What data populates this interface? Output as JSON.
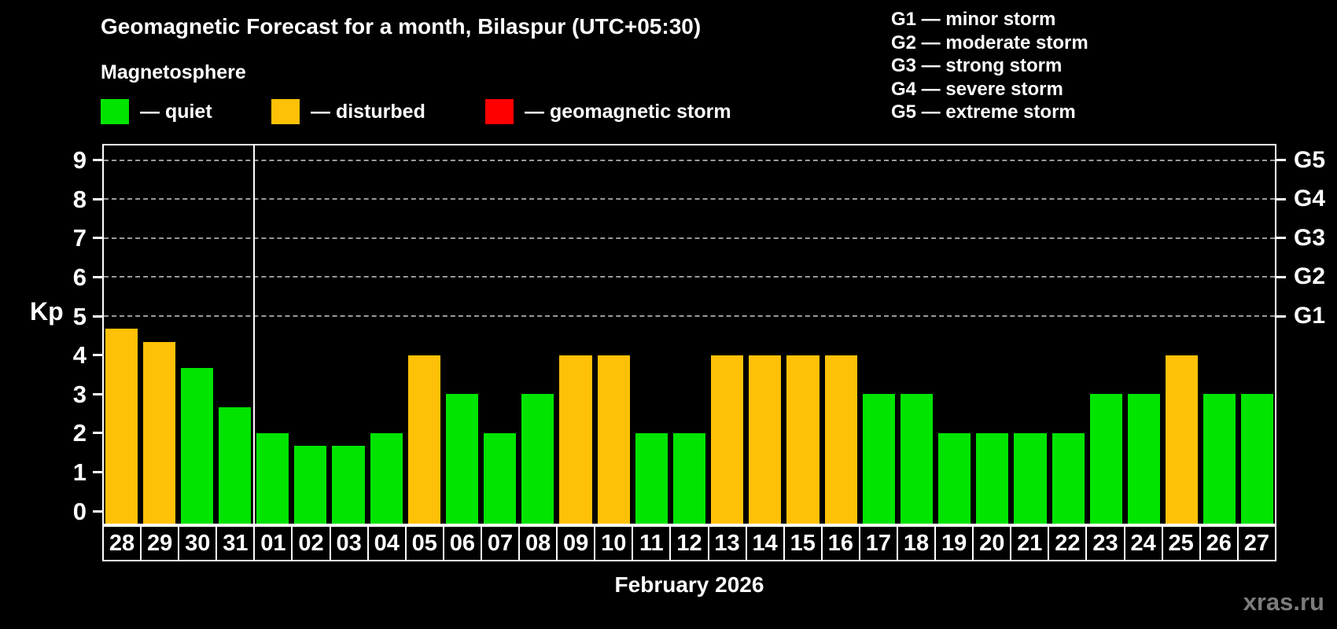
{
  "title": "Geomagnetic Forecast for a month, Bilaspur (UTC+05:30)",
  "subtitle": "Magnetosphere",
  "legend": {
    "items": [
      {
        "key": "quiet",
        "label": "— quiet",
        "color": "#00e400"
      },
      {
        "key": "disturbed",
        "label": "— disturbed",
        "color": "#ffc107"
      },
      {
        "key": "storm",
        "label": "— geomagnetic storm",
        "color": "#ff0000"
      }
    ]
  },
  "g_legend": [
    "G1 — minor storm",
    "G2 — moderate storm",
    "G3 — strong storm",
    "G4 — severe storm",
    "G5 — extreme storm"
  ],
  "watermark": "xras.ru",
  "chart_data": {
    "type": "bar",
    "title": "Geomagnetic Forecast for a month, Bilaspur (UTC+05:30)",
    "ylabel": "Kp",
    "xlabel": "February 2026",
    "ylim": [
      0,
      9.4
    ],
    "grid": "dashed horizontal at Kp 5-9 only",
    "legend_position": "top-left and top-right",
    "categories": [
      "28",
      "29",
      "30",
      "31",
      "01",
      "02",
      "03",
      "04",
      "05",
      "06",
      "07",
      "08",
      "09",
      "10",
      "11",
      "12",
      "13",
      "14",
      "15",
      "16",
      "17",
      "18",
      "19",
      "20",
      "21",
      "22",
      "23",
      "24",
      "25",
      "26",
      "27"
    ],
    "values": [
      4.67,
      4.33,
      3.67,
      2.67,
      2,
      1.67,
      1.67,
      2,
      4,
      3,
      2,
      3,
      4,
      4,
      2,
      2,
      4,
      4,
      4,
      4,
      3,
      3,
      2,
      2,
      2,
      2,
      3,
      3,
      4,
      3,
      3
    ],
    "statuses": [
      "disturbed",
      "disturbed",
      "quiet",
      "quiet",
      "quiet",
      "quiet",
      "quiet",
      "quiet",
      "disturbed",
      "quiet",
      "quiet",
      "quiet",
      "disturbed",
      "disturbed",
      "quiet",
      "quiet",
      "disturbed",
      "disturbed",
      "disturbed",
      "disturbed",
      "quiet",
      "quiet",
      "quiet",
      "quiet",
      "quiet",
      "quiet",
      "quiet",
      "quiet",
      "disturbed",
      "quiet",
      "quiet"
    ],
    "colors": {
      "quiet": "#00e400",
      "disturbed": "#ffc107",
      "storm": "#ff0000"
    },
    "yticks": [
      0,
      1,
      2,
      3,
      4,
      5,
      6,
      7,
      8,
      9
    ],
    "gridline_kp": [
      5,
      6,
      7,
      8,
      9
    ],
    "g_levels": [
      {
        "label": "G1",
        "kp": 5
      },
      {
        "label": "G2",
        "kp": 6
      },
      {
        "label": "G3",
        "kp": 7
      },
      {
        "label": "G4",
        "kp": 8
      },
      {
        "label": "G5",
        "kp": 9
      }
    ],
    "separator_after_category_index": 3
  }
}
